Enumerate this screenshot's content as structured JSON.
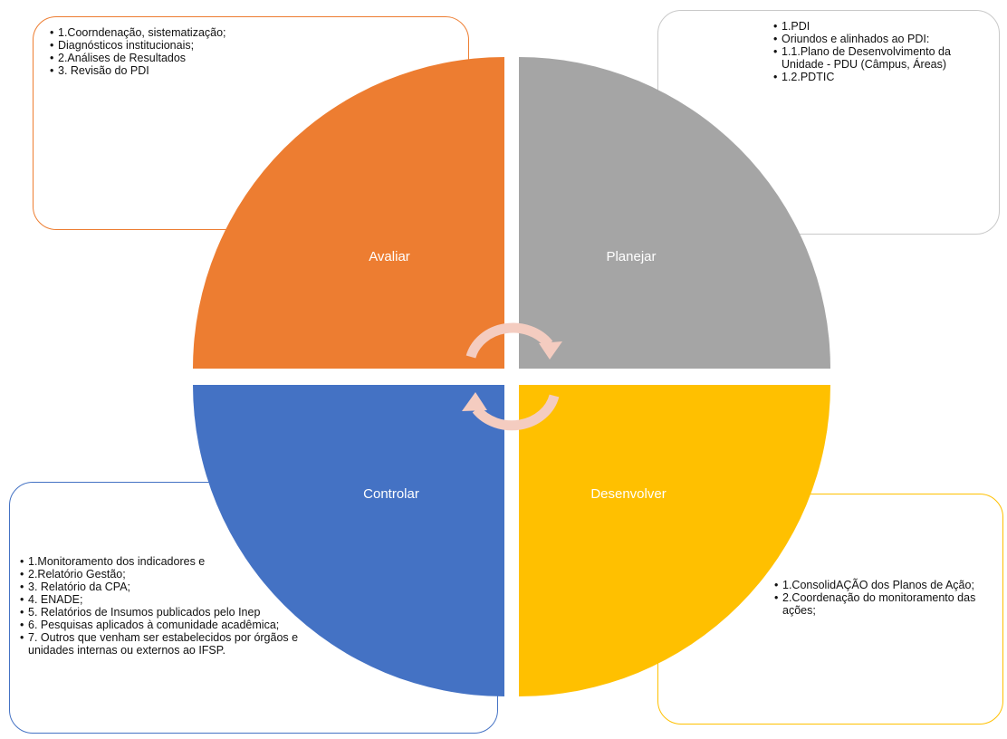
{
  "colors": {
    "avaliar": "#ED7D31",
    "planejar": "#A5A5A5",
    "desenvolver": "#FFC000",
    "controlar": "#4472C4",
    "arrows": "#F4CCC0"
  },
  "quadrants": {
    "avaliar": "Avaliar",
    "planejar": "Planejar",
    "controlar": "Controlar",
    "desenvolver": "Desenvolver"
  },
  "boxes": {
    "avaliar": [
      "1.Coorndenação, sistematização;",
      "Diagnósticos institucionais;",
      "2.Análises de Resultados",
      "3. Revisão do  PDI"
    ],
    "planejar": [
      "1.PDI",
      "Oriundos e alinhados ao PDI:",
      "1.1.Plano de Desenvolvimento da Unidade - PDU  (Câmpus, Áreas)",
      "1.2.PDTIC"
    ],
    "controlar": [
      "1.Monitoramento dos indicadores e",
      "2.Relatório Gestão;",
      "3. Relatório da CPA;",
      "4. ENADE;",
      "5. Relatórios de Insumos publicados pelo Inep",
      "6. Pesquisas aplicados à comunidade acadêmica;",
      "7. Outros que venham ser estabelecidos por órgãos e unidades internas ou externos ao IFSP."
    ],
    "desenvolver": [
      "1.ConsolidAÇÃO dos Planos de Ação;",
      "2.Coordenação do monitoramento das ações;"
    ]
  }
}
